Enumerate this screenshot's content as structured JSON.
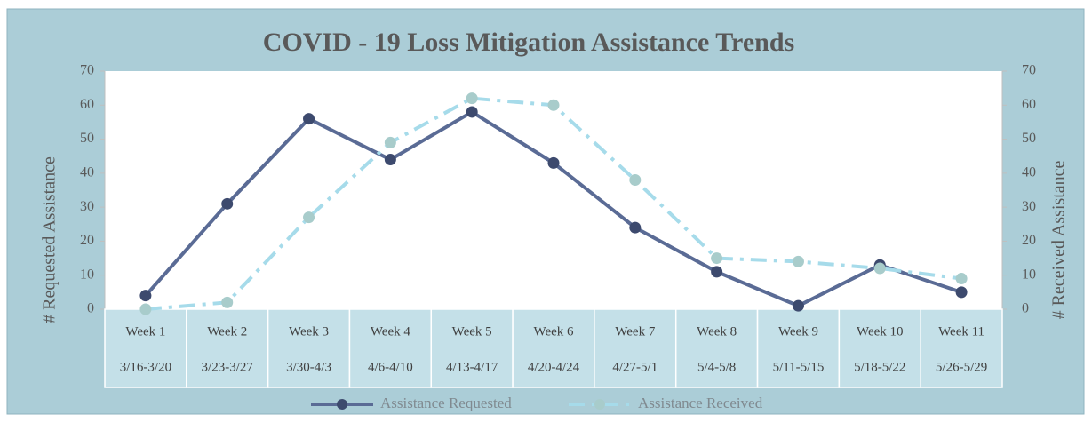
{
  "chart_data": {
    "type": "line",
    "title": "COVID - 19 Loss Mitigation Assistance Trends",
    "y_label": "# Requested Assistance",
    "y2_label": "# Received Assistance",
    "categories": [
      "Week 1",
      "Week 2",
      "Week 3",
      "Week 4",
      "Week 5",
      "Week 6",
      "Week 7",
      "Week 8",
      "Week 9",
      "Week 10",
      "Week 11"
    ],
    "category_dates": [
      "3/16-3/20",
      "3/23-3/27",
      "3/30-4/3",
      "4/6-4/10",
      "4/13-4/17",
      "4/20-4/24",
      "4/27-5/1",
      "5/4-5/8",
      "5/11-5/15",
      "5/18-5/22",
      "5/26-5/29"
    ],
    "series": [
      {
        "name": "Assistance Requested",
        "color": "#5a6b95",
        "marker_color": "#3d4a6e",
        "values": [
          4,
          31,
          56,
          44,
          58,
          43,
          24,
          11,
          1,
          13,
          5
        ]
      },
      {
        "name": "Assistance Received",
        "color": "#a6dbea",
        "marker_color": "#a8cccb",
        "axis": "y2",
        "values": [
          0,
          2,
          27,
          49,
          62,
          60,
          38,
          15,
          14,
          12,
          9
        ]
      }
    ],
    "ylim": [
      0,
      70
    ],
    "yticks": [
      0,
      10,
      20,
      30,
      40,
      50,
      60,
      70
    ],
    "y2lim": [
      0,
      70
    ],
    "y2ticks": [
      0,
      10,
      20,
      30,
      40,
      50,
      60,
      70
    ],
    "legend": "bottom"
  }
}
